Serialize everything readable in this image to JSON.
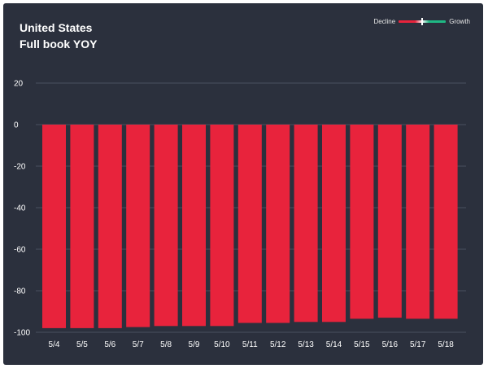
{
  "header": {
    "title": "United States",
    "subtitle": "Full book YOY"
  },
  "legend": {
    "decline_label": "Decline",
    "growth_label": "Growth"
  },
  "colors": {
    "background": "#2b303d",
    "bar": "#e8233c",
    "gridline": "#4a5060"
  },
  "chart_data": {
    "type": "bar",
    "title": "United States",
    "subtitle": "Full book YOY",
    "categories": [
      "5/4",
      "5/5",
      "5/6",
      "5/7",
      "5/8",
      "5/9",
      "5/10",
      "5/11",
      "5/12",
      "5/13",
      "5/14",
      "5/15",
      "5/16",
      "5/17",
      "5/18"
    ],
    "values": [
      -98,
      -98,
      -98,
      -97.5,
      -97,
      -97,
      -97,
      -95.5,
      -95.5,
      -95,
      -95,
      -93.5,
      -93,
      -93.5,
      -93.5
    ],
    "yticks": [
      20,
      0,
      -20,
      -40,
      -60,
      -80,
      -100
    ],
    "ylim": [
      -100,
      20
    ],
    "grid": true,
    "legend_position": "top-right"
  }
}
